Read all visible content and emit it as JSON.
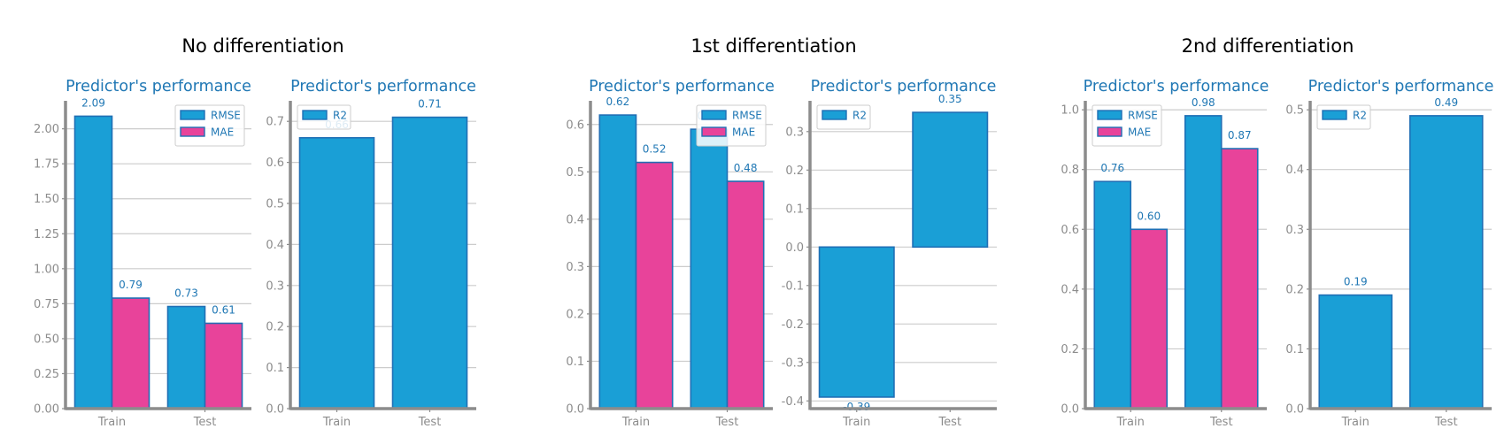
{
  "colors": {
    "rmse": "#1a9fd6",
    "mae": "#e8439a",
    "r2": "#1a9fd6",
    "edge": "#1f6fb5",
    "title": "#1f77b4",
    "axis": "#8c8c8c",
    "grid": "#cccccc"
  },
  "groups": [
    {
      "title": "No differentiation"
    },
    {
      "title": "1st differentiation"
    },
    {
      "title": "2nd differentiation"
    }
  ],
  "chart_data": [
    {
      "type": "bar",
      "group": "No differentiation",
      "title": "Predictor's performance",
      "categories": [
        "Train",
        "Test"
      ],
      "series": [
        {
          "name": "RMSE",
          "values": [
            2.09,
            0.73
          ]
        },
        {
          "name": "MAE",
          "values": [
            0.79,
            0.61
          ]
        }
      ],
      "ylim": [
        0,
        2.2
      ],
      "yticks": [
        0.0,
        0.25,
        0.5,
        0.75,
        1.0,
        1.25,
        1.5,
        1.75,
        2.0
      ],
      "tick_decimals": 2,
      "grid": true,
      "legend": "top-right"
    },
    {
      "type": "bar",
      "group": "No differentiation",
      "title": "Predictor's performance",
      "categories": [
        "Train",
        "Test"
      ],
      "series": [
        {
          "name": "R2",
          "values": [
            0.66,
            0.71
          ]
        }
      ],
      "ylim": [
        0,
        0.75
      ],
      "yticks": [
        0.0,
        0.1,
        0.2,
        0.3,
        0.4,
        0.5,
        0.6,
        0.7
      ],
      "tick_decimals": 1,
      "grid": true,
      "legend": "top-left"
    },
    {
      "type": "bar",
      "group": "1st differentiation",
      "title": "Predictor's performance",
      "categories": [
        "Train",
        "Test"
      ],
      "series": [
        {
          "name": "RMSE",
          "values": [
            0.62,
            0.59
          ]
        },
        {
          "name": "MAE",
          "values": [
            0.52,
            0.48
          ]
        }
      ],
      "ylim": [
        0,
        0.65
      ],
      "yticks": [
        0.0,
        0.1,
        0.2,
        0.3,
        0.4,
        0.5,
        0.6
      ],
      "tick_decimals": 1,
      "grid": true,
      "legend": "top-right"
    },
    {
      "type": "bar",
      "group": "1st differentiation",
      "title": "Predictor's performance",
      "categories": [
        "Train",
        "Test"
      ],
      "series": [
        {
          "name": "R2",
          "values": [
            -0.39,
            0.35
          ]
        }
      ],
      "ylim": [
        -0.42,
        0.38
      ],
      "yticks": [
        -0.4,
        -0.3,
        -0.2,
        -0.1,
        0.0,
        0.1,
        0.2,
        0.3
      ],
      "tick_decimals": 1,
      "grid": true,
      "legend": "top-left"
    },
    {
      "type": "bar",
      "group": "2nd differentiation",
      "title": "Predictor's performance",
      "categories": [
        "Train",
        "Test"
      ],
      "series": [
        {
          "name": "RMSE",
          "values": [
            0.76,
            0.98
          ]
        },
        {
          "name": "MAE",
          "values": [
            0.6,
            0.87
          ]
        }
      ],
      "ylim": [
        0,
        1.03
      ],
      "yticks": [
        0.0,
        0.2,
        0.4,
        0.6,
        0.8,
        1.0
      ],
      "tick_decimals": 1,
      "grid": true,
      "legend": "top-left"
    },
    {
      "type": "bar",
      "group": "2nd differentiation",
      "title": "Predictor's performance",
      "categories": [
        "Train",
        "Test"
      ],
      "series": [
        {
          "name": "R2",
          "values": [
            0.19,
            0.49
          ]
        }
      ],
      "ylim": [
        0,
        0.515
      ],
      "yticks": [
        0.0,
        0.1,
        0.2,
        0.3,
        0.4,
        0.5
      ],
      "tick_decimals": 1,
      "grid": true,
      "legend": "top-left"
    }
  ]
}
